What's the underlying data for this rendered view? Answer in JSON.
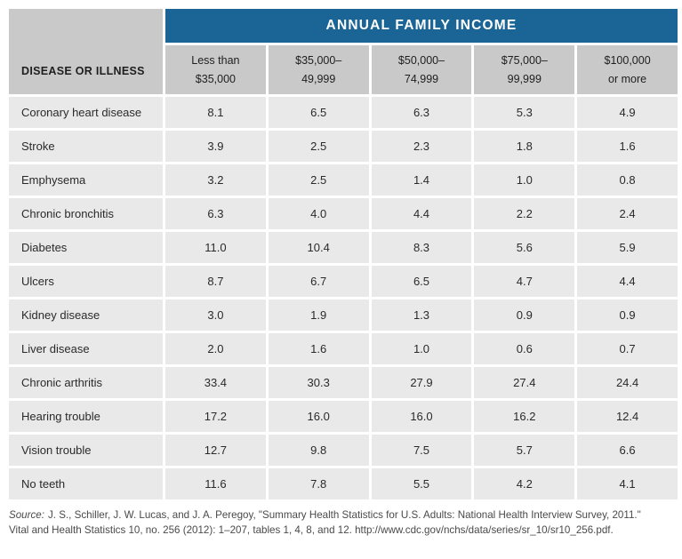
{
  "banner": {
    "title": "ANNUAL FAMILY INCOME"
  },
  "table": {
    "corner_header": "DISEASE OR ILLNESS",
    "column_headers": [
      {
        "line1": "Less than",
        "line2": "$35,000"
      },
      {
        "line1": "$35,000–",
        "line2": "49,999"
      },
      {
        "line1": "$50,000–",
        "line2": "74,999"
      },
      {
        "line1": "$75,000–",
        "line2": "99,999"
      },
      {
        "line1": "$100,000",
        "line2": "or more"
      }
    ],
    "rows": [
      {
        "name": "Coronary heart disease",
        "values": [
          "8.1",
          "6.5",
          "6.3",
          "5.3",
          "4.9"
        ]
      },
      {
        "name": "Stroke",
        "values": [
          "3.9",
          "2.5",
          "2.3",
          "1.8",
          "1.6"
        ]
      },
      {
        "name": "Emphysema",
        "values": [
          "3.2",
          "2.5",
          "1.4",
          "1.0",
          "0.8"
        ]
      },
      {
        "name": "Chronic bronchitis",
        "values": [
          "6.3",
          "4.0",
          "4.4",
          "2.2",
          "2.4"
        ]
      },
      {
        "name": "Diabetes",
        "values": [
          "11.0",
          "10.4",
          "8.3",
          "5.6",
          "5.9"
        ]
      },
      {
        "name": "Ulcers",
        "values": [
          "8.7",
          "6.7",
          "6.5",
          "4.7",
          "4.4"
        ]
      },
      {
        "name": "Kidney disease",
        "values": [
          "3.0",
          "1.9",
          "1.3",
          "0.9",
          "0.9"
        ]
      },
      {
        "name": "Liver disease",
        "values": [
          "2.0",
          "1.6",
          "1.0",
          "0.6",
          "0.7"
        ]
      },
      {
        "name": "Chronic arthritis",
        "values": [
          "33.4",
          "30.3",
          "27.9",
          "27.4",
          "24.4"
        ]
      },
      {
        "name": "Hearing trouble",
        "values": [
          "17.2",
          "16.0",
          "16.0",
          "16.2",
          "12.4"
        ]
      },
      {
        "name": "Vision trouble",
        "values": [
          "12.7",
          "9.8",
          "7.5",
          "5.7",
          "6.6"
        ]
      },
      {
        "name": "No teeth",
        "values": [
          "11.6",
          "7.8",
          "5.5",
          "4.2",
          "4.1"
        ]
      }
    ]
  },
  "source": {
    "prefix": "Source:",
    "line1": "J. S., Schiller, J. W. Lucas, and J. A. Peregoy, \"Summary Health Statistics for U.S. Adults: National Health Interview Survey, 2011.\"",
    "line2": "Vital and Health Statistics 10, no. 256 (2012): 1–207, tables 1, 4, 8, and 12. http://www.cdc.gov/nchs/data/series/sr_10/sr10_256.pdf."
  },
  "colors": {
    "banner_blue": "#1A6496",
    "header_gray": "#C9C9C9",
    "row_gray": "#E9E9E9"
  },
  "chart_data": {
    "type": "table",
    "title": "ANNUAL FAMILY INCOME",
    "row_header_label": "DISEASE OR ILLNESS",
    "columns": [
      "Less than $35,000",
      "$35,000–49,999",
      "$50,000–74,999",
      "$75,000–99,999",
      "$100,000 or more"
    ],
    "rows": [
      {
        "label": "Coronary heart disease",
        "values": [
          8.1,
          6.5,
          6.3,
          5.3,
          4.9
        ]
      },
      {
        "label": "Stroke",
        "values": [
          3.9,
          2.5,
          2.3,
          1.8,
          1.6
        ]
      },
      {
        "label": "Emphysema",
        "values": [
          3.2,
          2.5,
          1.4,
          1.0,
          0.8
        ]
      },
      {
        "label": "Chronic bronchitis",
        "values": [
          6.3,
          4.0,
          4.4,
          2.2,
          2.4
        ]
      },
      {
        "label": "Diabetes",
        "values": [
          11.0,
          10.4,
          8.3,
          5.6,
          5.9
        ]
      },
      {
        "label": "Ulcers",
        "values": [
          8.7,
          6.7,
          6.5,
          4.7,
          4.4
        ]
      },
      {
        "label": "Kidney disease",
        "values": [
          3.0,
          1.9,
          1.3,
          0.9,
          0.9
        ]
      },
      {
        "label": "Liver disease",
        "values": [
          2.0,
          1.6,
          1.0,
          0.6,
          0.7
        ]
      },
      {
        "label": "Chronic arthritis",
        "values": [
          33.4,
          30.3,
          27.9,
          27.4,
          24.4
        ]
      },
      {
        "label": "Hearing trouble",
        "values": [
          17.2,
          16.0,
          16.0,
          16.2,
          12.4
        ]
      },
      {
        "label": "Vision trouble",
        "values": [
          12.7,
          9.8,
          7.5,
          5.7,
          6.6
        ]
      },
      {
        "label": "No teeth",
        "values": [
          11.6,
          7.8,
          5.5,
          4.2,
          4.1
        ]
      }
    ],
    "source": "J. S., Schiller, J. W. Lucas, and J. A. Peregoy, \"Summary Health Statistics for U.S. Adults: National Health Interview Survey, 2011.\" Vital and Health Statistics 10, no. 256 (2012): 1–207, tables 1, 4, 8, and 12. http://www.cdc.gov/nchs/data/series/sr_10/sr10_256.pdf."
  }
}
